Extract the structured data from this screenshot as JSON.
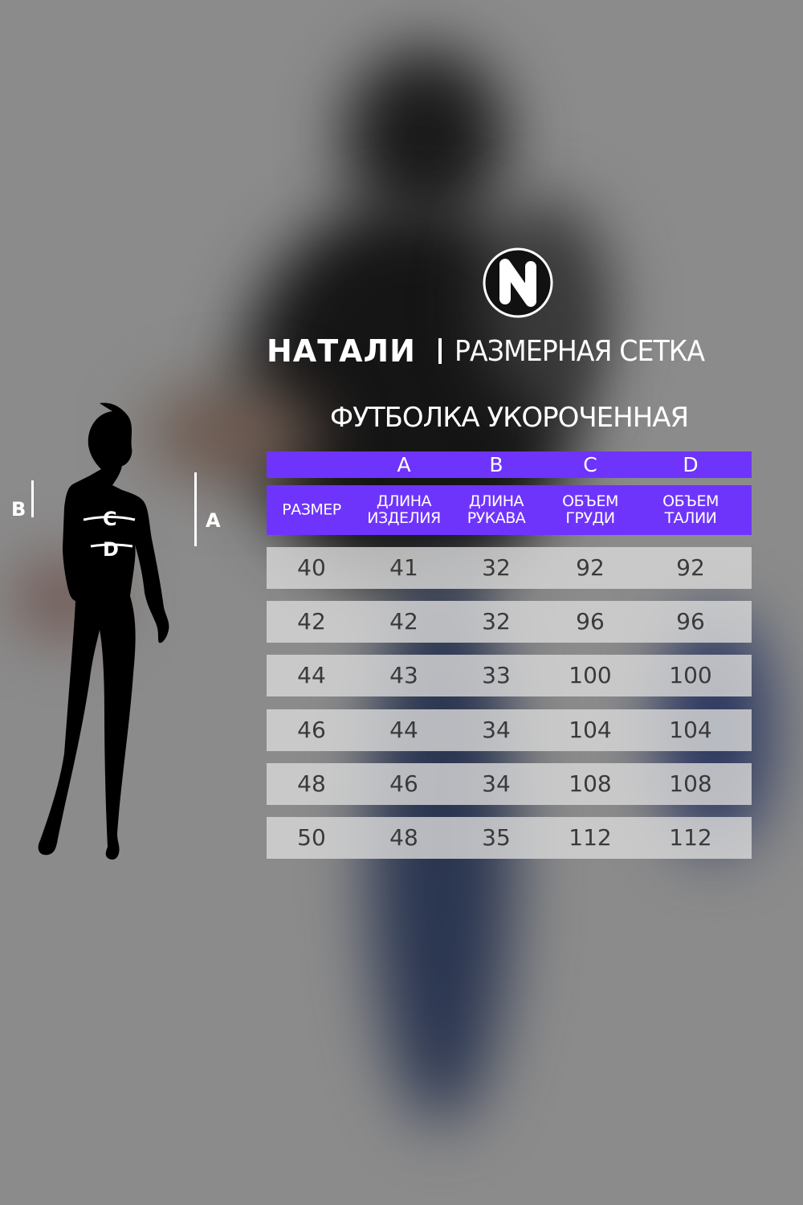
{
  "brand": {
    "name": "НАТАЛИ",
    "subtitle": "РАЗМЕРНАЯ СЕТКА",
    "logo_icon": "n-circle-logo"
  },
  "product": "ФУТБОЛКА УКОРОЧЕННАЯ",
  "accent_color": "#6f34fb",
  "table": {
    "letters": [
      "",
      "A",
      "B",
      "C",
      "D"
    ],
    "headers": [
      [
        "РАЗМЕР"
      ],
      [
        "ДЛИНА",
        "ИЗДЕЛИЯ"
      ],
      [
        "ДЛИНА",
        "РУКАВА"
      ],
      [
        "ОБЪЕМ",
        "ГРУДИ"
      ],
      [
        "ОБЪЕМ",
        "ТАЛИИ"
      ]
    ],
    "rows": [
      [
        "40",
        "41",
        "32",
        "92",
        "92"
      ],
      [
        "42",
        "42",
        "32",
        "96",
        "96"
      ],
      [
        "44",
        "43",
        "33",
        "100",
        "100"
      ],
      [
        "46",
        "44",
        "34",
        "104",
        "104"
      ],
      [
        "48",
        "46",
        "34",
        "108",
        "108"
      ],
      [
        "50",
        "48",
        "35",
        "112",
        "112"
      ]
    ]
  },
  "figure": {
    "labels": {
      "b": "B",
      "a": "A",
      "c": "C",
      "d": "D"
    },
    "icon": "female-silhouette-icon"
  }
}
